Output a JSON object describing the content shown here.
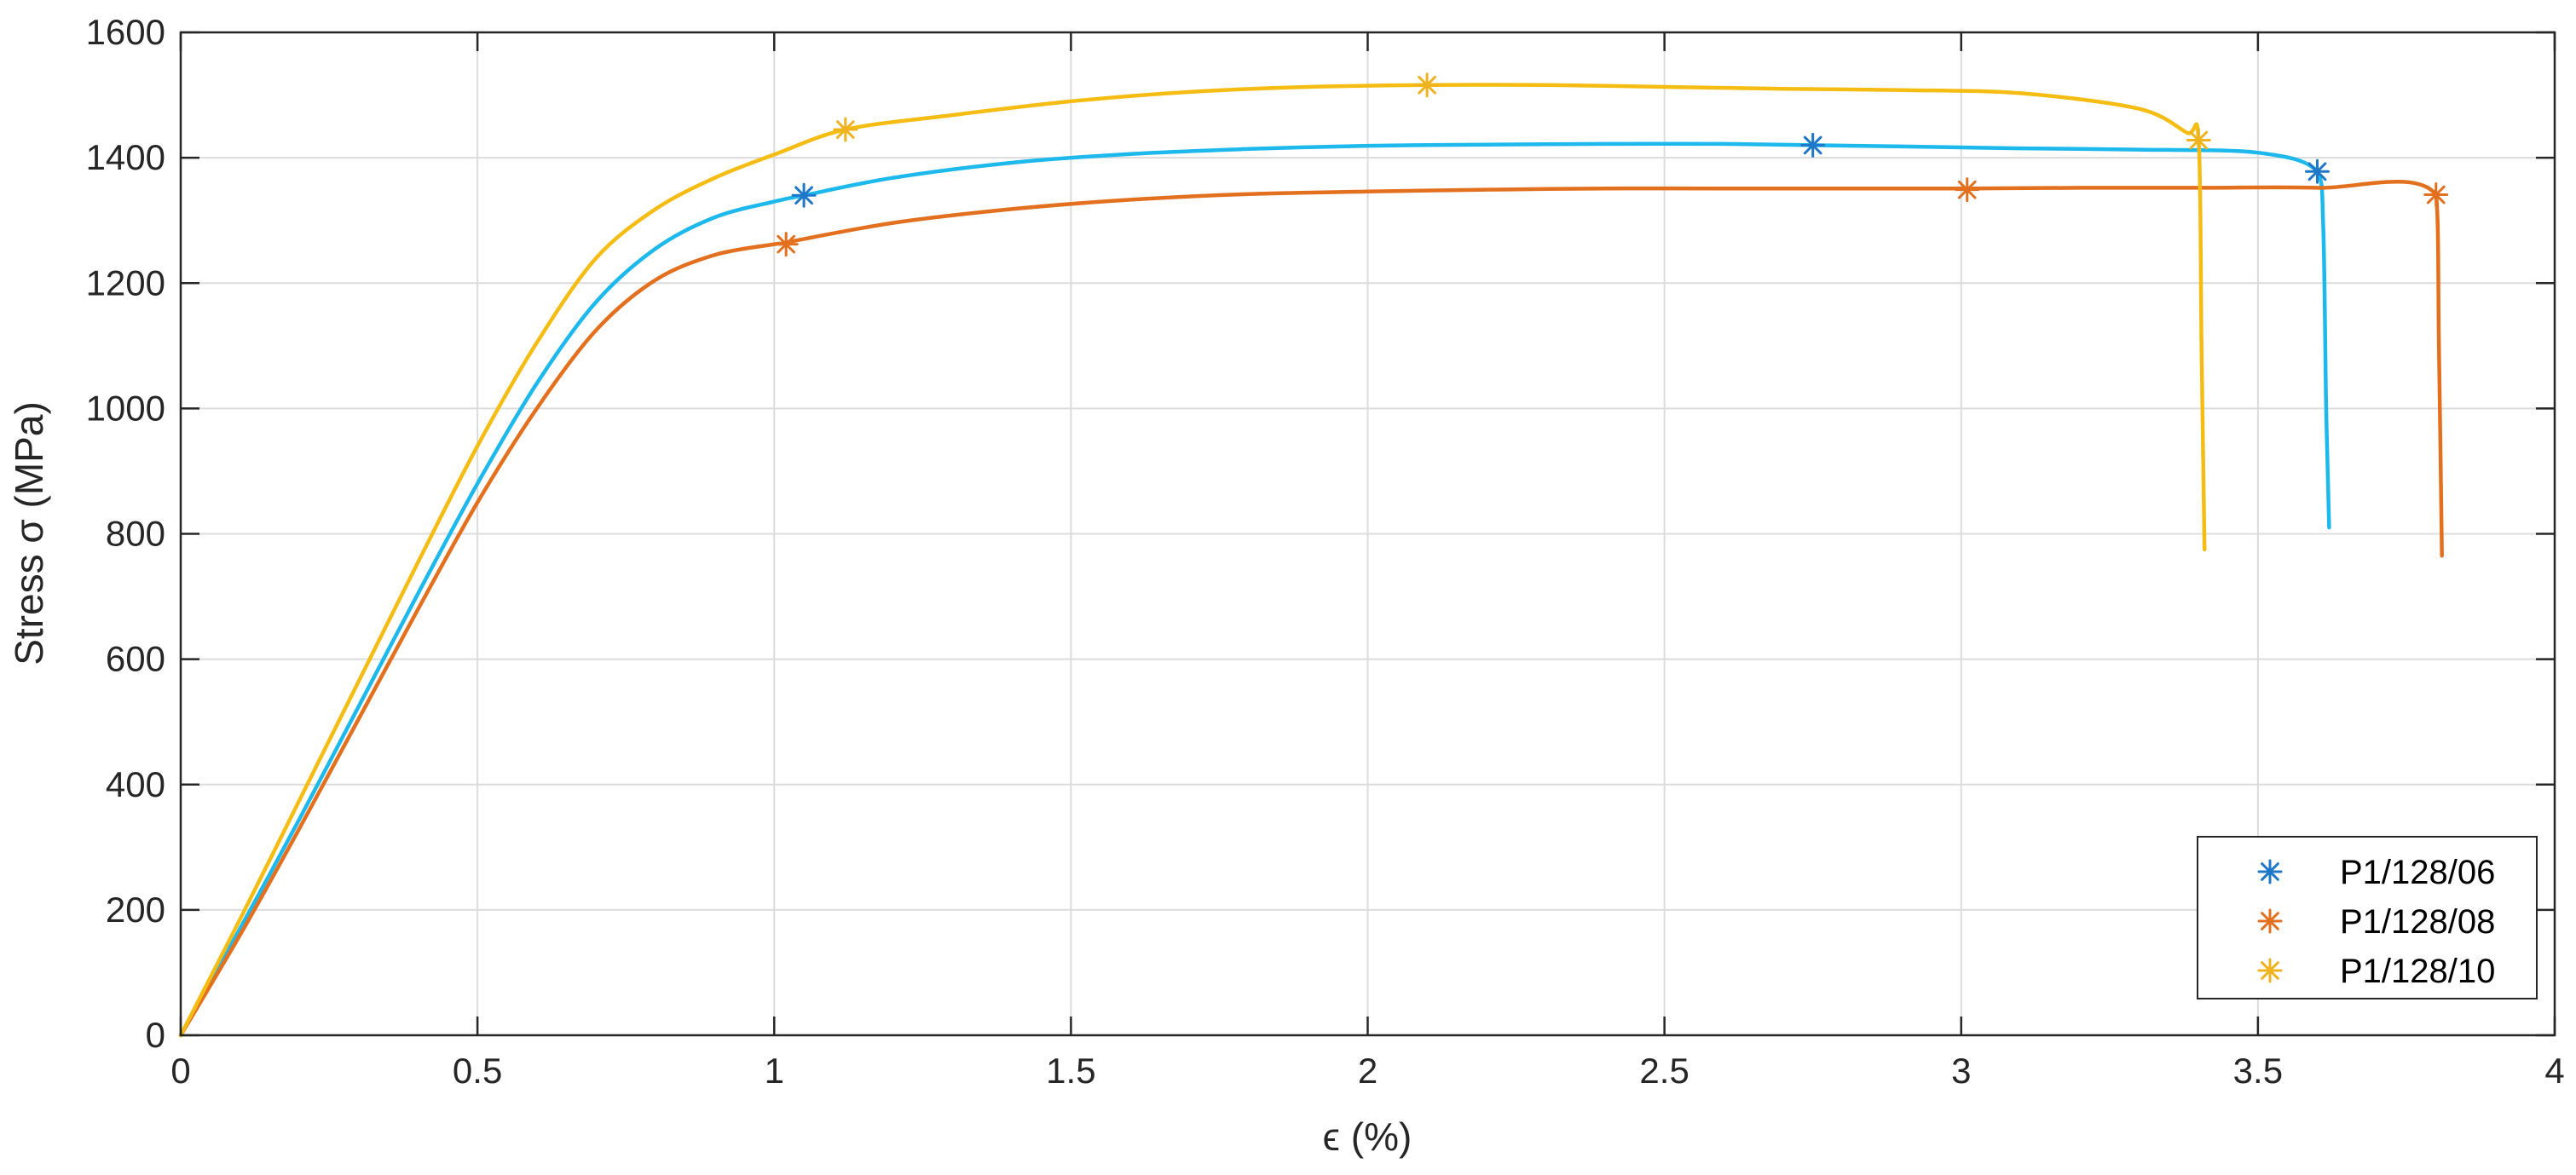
{
  "chart_data": {
    "type": "line",
    "xlabel": "ϵ (%)",
    "ylabel": "Stress σ (MPa)",
    "xlim": [
      0,
      4
    ],
    "ylim": [
      0,
      1600
    ],
    "xticks": [
      0,
      0.5,
      1,
      1.5,
      2,
      2.5,
      3,
      3.5,
      4
    ],
    "yticks": [
      0,
      200,
      400,
      600,
      800,
      1000,
      1200,
      1400,
      1600
    ],
    "xtick_labels": [
      "0",
      "0.5",
      "1",
      "1.5",
      "2",
      "2.5",
      "3",
      "3.5",
      "4"
    ],
    "ytick_labels": [
      "0",
      "200",
      "400",
      "600",
      "800",
      "1000",
      "1200",
      "1400",
      "1600"
    ],
    "grid": true,
    "legend_position": "bottom-right",
    "series": [
      {
        "name": "P1/128/06",
        "color": "#1db8ec",
        "marker_color": "#1f77c8",
        "x": [
          0,
          0.1,
          0.2,
          0.3,
          0.4,
          0.5,
          0.6,
          0.7,
          0.8,
          0.9,
          1.0,
          1.05,
          1.2,
          1.4,
          1.6,
          1.8,
          2.0,
          2.2,
          2.4,
          2.6,
          2.75,
          2.9,
          3.1,
          3.3,
          3.5,
          3.6,
          3.61,
          3.615,
          3.62
        ],
        "y": [
          0,
          170,
          345,
          525,
          705,
          880,
          1040,
          1170,
          1255,
          1305,
          1330,
          1340,
          1368,
          1392,
          1406,
          1414,
          1419,
          1421,
          1422,
          1422,
          1420,
          1418,
          1415,
          1413,
          1408,
          1378,
          1290,
          1000,
          810
        ],
        "markers": [
          [
            1.05,
            1340
          ],
          [
            2.75,
            1420
          ],
          [
            3.6,
            1378
          ]
        ]
      },
      {
        "name": "P1/128/08",
        "color": "#e3701e",
        "marker_color": "#e3701e",
        "x": [
          0,
          0.1,
          0.2,
          0.3,
          0.4,
          0.5,
          0.6,
          0.7,
          0.8,
          0.9,
          1.0,
          1.02,
          1.2,
          1.4,
          1.6,
          1.8,
          2.0,
          2.2,
          2.4,
          2.6,
          2.8,
          3.01,
          3.2,
          3.4,
          3.6,
          3.8,
          3.805,
          3.81
        ],
        "y": [
          0,
          160,
          330,
          505,
          680,
          850,
          1000,
          1125,
          1205,
          1245,
          1262,
          1265,
          1296,
          1318,
          1333,
          1342,
          1346,
          1349,
          1351,
          1351,
          1351,
          1351,
          1352,
          1352,
          1352,
          1341,
          1100,
          765
        ],
        "markers": [
          [
            1.02,
            1262
          ],
          [
            3.01,
            1349
          ],
          [
            3.8,
            1341
          ]
        ]
      },
      {
        "name": "P1/128/10",
        "color": "#f5bd14",
        "marker_color": "#f0b320",
        "x": [
          0,
          0.1,
          0.2,
          0.3,
          0.4,
          0.5,
          0.6,
          0.7,
          0.8,
          0.9,
          1.0,
          1.12,
          1.3,
          1.5,
          1.7,
          1.9,
          2.1,
          2.3,
          2.5,
          2.7,
          2.9,
          3.1,
          3.3,
          3.38,
          3.4,
          3.405,
          3.41
        ],
        "y": [
          0,
          185,
          375,
          565,
          755,
          940,
          1105,
          1240,
          1318,
          1368,
          1405,
          1445,
          1468,
          1490,
          1505,
          1513,
          1516,
          1516,
          1513,
          1510,
          1508,
          1503,
          1478,
          1440,
          1428,
          1100,
          775
        ],
        "markers": [
          [
            1.12,
            1445
          ],
          [
            2.1,
            1516
          ],
          [
            3.4,
            1428
          ]
        ]
      }
    ]
  }
}
